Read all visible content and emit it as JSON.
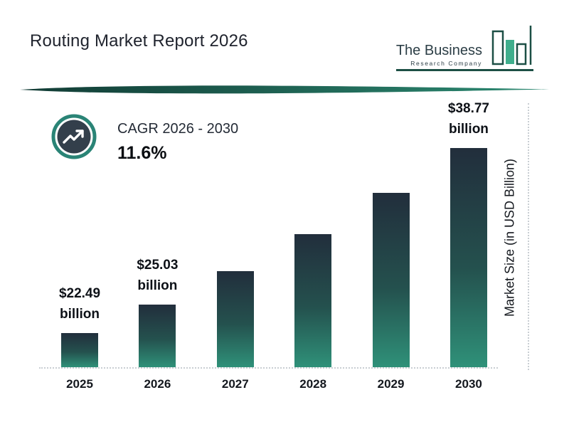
{
  "header": {
    "title": "Routing Market Report 2026",
    "logo": {
      "line1": "The Business",
      "line2": "Research Company"
    }
  },
  "cagr": {
    "label": "CAGR 2026 - 2030",
    "value": "11.6%"
  },
  "chart_data": {
    "type": "bar",
    "title": "Routing Market Report 2026",
    "categories": [
      "2025",
      "2026",
      "2027",
      "2028",
      "2029",
      "2030"
    ],
    "values": [
      22.49,
      25.03,
      27.93,
      31.17,
      34.79,
      38.77
    ],
    "labeled_points": [
      {
        "category": "2025",
        "amount": "$22.49",
        "unit": "billion"
      },
      {
        "category": "2026",
        "amount": "$25.03",
        "unit": "billion"
      },
      {
        "category": "2030",
        "amount": "$38.77",
        "unit": "billion"
      }
    ],
    "xlabel": "",
    "ylabel": "Market Size (in USD Billion)",
    "ylim": [
      19.5,
      40
    ],
    "grid": false,
    "legend": "none",
    "annotations": [
      "CAGR 2026 - 2030",
      "11.6%"
    ]
  },
  "colors": {
    "accent_teal": "#2a8476",
    "bar_top": "#222e3c",
    "bar_bottom": "#2f9179",
    "divider_dark": "#113b34",
    "divider_light": "#2c8a72",
    "logo_outline": "#1c4f45",
    "logo_fill": "#3fae8c",
    "badge_disc": "#333f4b",
    "dotted_line": "#c9ced3",
    "text_dark": "#14181e"
  }
}
